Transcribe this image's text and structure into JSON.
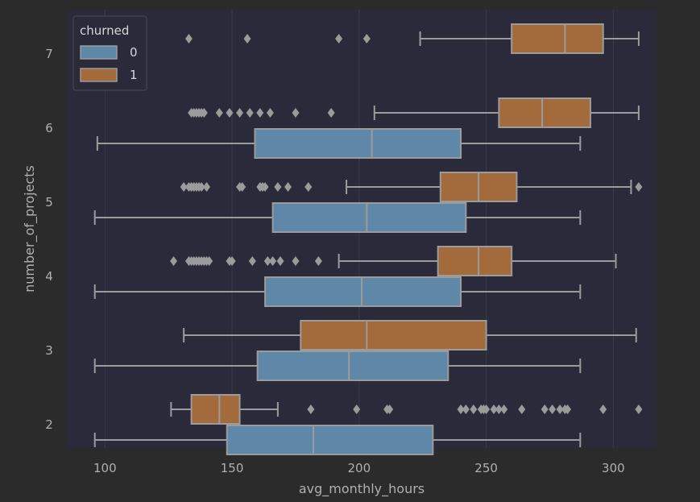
{
  "chart_data": {
    "type": "boxplot",
    "orientation": "horizontal",
    "xlabel": "avg_monthly_hours",
    "ylabel": "number_of_projects",
    "x_ticks": [
      100,
      150,
      200,
      250,
      300
    ],
    "xlim": [
      85,
      317
    ],
    "y_categories": [
      "7",
      "6",
      "5",
      "4",
      "3",
      "2"
    ],
    "grid": true,
    "legend": {
      "title": "churned",
      "position": "top-left",
      "entries": [
        {
          "label": "0",
          "color": "#5f87a8"
        },
        {
          "label": "1",
          "color": "#a36b3c"
        }
      ]
    },
    "colors": {
      "figure_bg": "#2b2b2b",
      "plot_bg": "#2b2a3a",
      "box_edge": "#9b9b9b",
      "series_0": "#5f87a8",
      "series_1": "#a36b3c"
    },
    "series": [
      {
        "name": "0",
        "boxes": [
          {
            "category": "6",
            "whisker_low": 97,
            "q1": 159,
            "median": 205,
            "q3": 240,
            "whisker_high": 287,
            "outliers": []
          },
          {
            "category": "5",
            "whisker_low": 96,
            "q1": 166,
            "median": 203,
            "q3": 242,
            "whisker_high": 287,
            "outliers": []
          },
          {
            "category": "4",
            "whisker_low": 96,
            "q1": 163,
            "median": 201,
            "q3": 240,
            "whisker_high": 287,
            "outliers": []
          },
          {
            "category": "3",
            "whisker_low": 96,
            "q1": 160,
            "median": 196,
            "q3": 235,
            "whisker_high": 287,
            "outliers": []
          },
          {
            "category": "2",
            "whisker_low": 96,
            "q1": 148,
            "median": 182,
            "q3": 229,
            "whisker_high": 287,
            "outliers": []
          }
        ]
      },
      {
        "name": "1",
        "boxes": [
          {
            "category": "7",
            "whisker_low": 224,
            "q1": 260,
            "median": 281,
            "q3": 296,
            "whisker_high": 310,
            "outliers": [
              133,
              156,
              192,
              203
            ]
          },
          {
            "category": "6",
            "whisker_low": 206,
            "q1": 255,
            "median": 272,
            "q3": 291,
            "whisker_high": 310,
            "outliers": [
              134,
              135,
              136,
              137,
              138,
              139,
              145,
              149,
              153,
              157,
              161,
              165,
              175,
              189
            ]
          },
          {
            "category": "5",
            "whisker_low": 195,
            "q1": 232,
            "median": 247,
            "q3": 262,
            "whisker_high": 307,
            "outliers": [
              131,
              133,
              134,
              135,
              136,
              137,
              138,
              140,
              153,
              154,
              161,
              162,
              163,
              168,
              172,
              180,
              310
            ]
          },
          {
            "category": "4",
            "whisker_low": 192,
            "q1": 231,
            "median": 247,
            "q3": 260,
            "whisker_high": 301,
            "outliers": [
              127,
              133,
              134,
              135,
              136,
              137,
              138,
              139,
              140,
              141,
              149,
              150,
              158,
              164,
              166,
              169,
              175,
              184
            ]
          },
          {
            "category": "3",
            "whisker_low": 131,
            "q1": 177,
            "median": 203,
            "q3": 250,
            "whisker_high": 309,
            "outliers": []
          },
          {
            "category": "2",
            "whisker_low": 126,
            "q1": 134,
            "median": 145,
            "q3": 153,
            "whisker_high": 168,
            "outliers": [
              181,
              199,
              211,
              212,
              240,
              242,
              245,
              248,
              249,
              250,
              253,
              255,
              257,
              264,
              273,
              276,
              279,
              281,
              282,
              296,
              310
            ]
          }
        ]
      }
    ]
  }
}
